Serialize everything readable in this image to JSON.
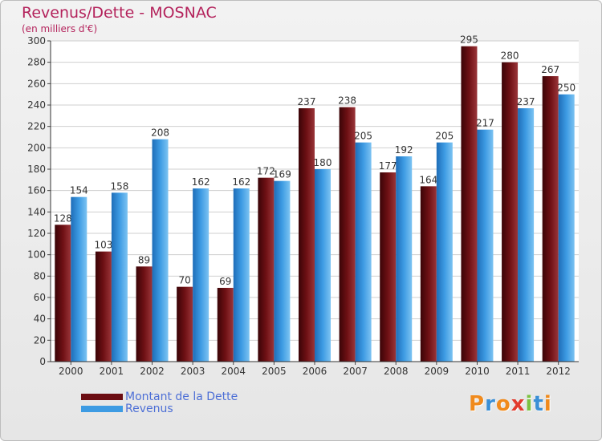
{
  "chart_data": {
    "type": "bar",
    "title": "Revenus/Dette - MOSNAC",
    "subtitle": "(en milliers d'€)",
    "categories": [
      "2000",
      "2001",
      "2002",
      "2003",
      "2004",
      "2005",
      "2006",
      "2007",
      "2008",
      "2009",
      "2010",
      "2011",
      "2012"
    ],
    "series": [
      {
        "name": "Montant de la Dette",
        "color": "#6b0d12",
        "values": [
          128,
          103,
          89,
          70,
          69,
          172,
          237,
          238,
          177,
          164,
          295,
          280,
          267
        ]
      },
      {
        "name": "Revenus",
        "color": "#3d9be3",
        "values": [
          154,
          158,
          208,
          162,
          162,
          169,
          180,
          205,
          192,
          205,
          217,
          237,
          250
        ]
      }
    ],
    "ylim": [
      0,
      300
    ],
    "yticks": [
      0,
      20,
      40,
      60,
      80,
      100,
      120,
      140,
      160,
      180,
      200,
      220,
      240,
      260,
      280,
      300
    ],
    "grid": true,
    "legend_position": "bottom-left"
  },
  "logo": {
    "letters": [
      "P",
      "r",
      "o",
      "x",
      "i",
      "t",
      "i"
    ],
    "colors": [
      "#f08a1c",
      "#3a8fd6",
      "#f08a1c",
      "#e23b2e",
      "#7cc242",
      "#3a8fd6",
      "#f08a1c"
    ]
  }
}
